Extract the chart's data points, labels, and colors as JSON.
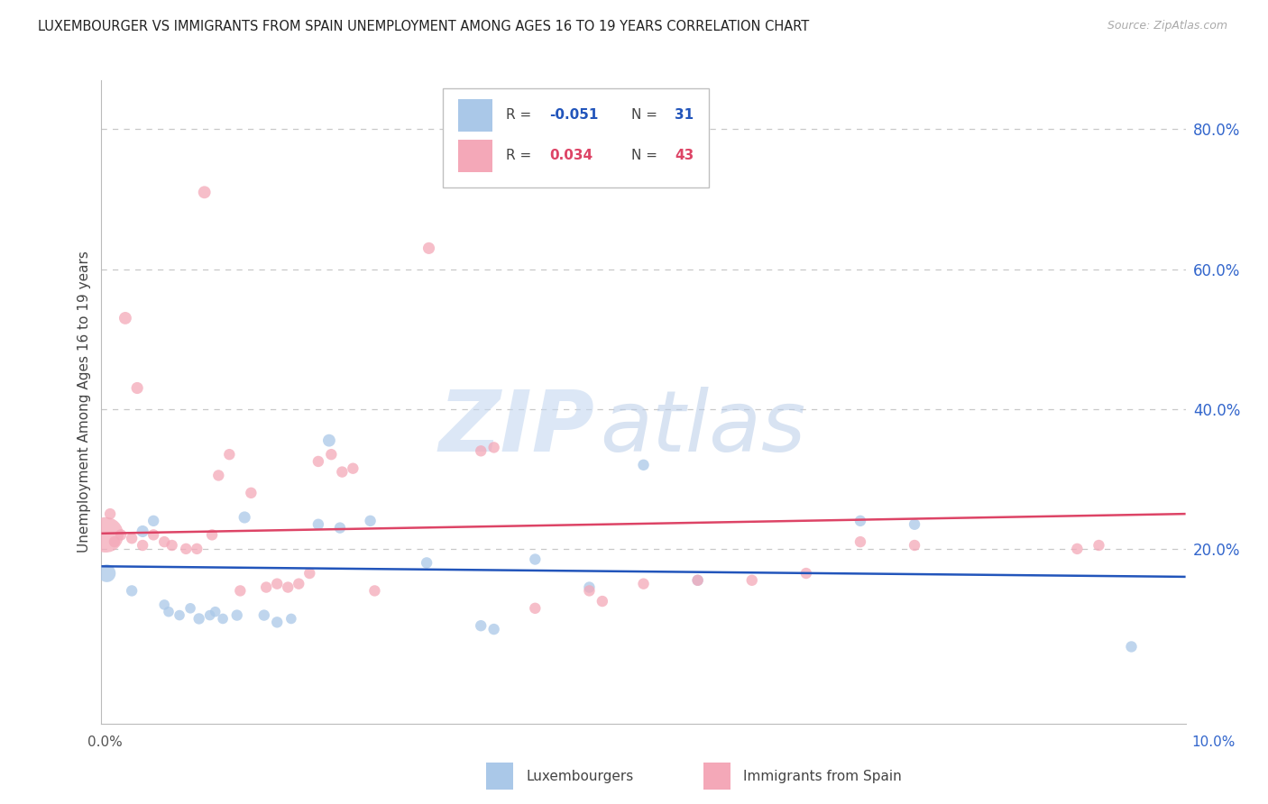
{
  "title": "LUXEMBOURGER VS IMMIGRANTS FROM SPAIN UNEMPLOYMENT AMONG AGES 16 TO 19 YEARS CORRELATION CHART",
  "source": "Source: ZipAtlas.com",
  "ylabel": "Unemployment Among Ages 16 to 19 years",
  "xlim": [
    0.0,
    10.0
  ],
  "ylim": [
    -5.0,
    87.0
  ],
  "right_yticks": [
    20.0,
    40.0,
    60.0,
    80.0
  ],
  "watermark_zip": "ZIP",
  "watermark_atlas": "atlas",
  "lux_color": "#aac8e8",
  "spain_color": "#f4a8b8",
  "lux_line_color": "#2255bb",
  "spain_line_color": "#dd4466",
  "lux_x": [
    0.05,
    0.28,
    0.38,
    0.48,
    0.58,
    0.62,
    0.72,
    0.82,
    0.9,
    1.0,
    1.05,
    1.12,
    1.25,
    1.32,
    1.5,
    1.62,
    1.75,
    2.0,
    2.1,
    2.2,
    2.48,
    3.0,
    3.5,
    3.62,
    4.0,
    4.5,
    5.0,
    5.5,
    7.0,
    7.5,
    9.5
  ],
  "lux_y": [
    16.5,
    14.0,
    22.5,
    24.0,
    12.0,
    11.0,
    10.5,
    11.5,
    10.0,
    10.5,
    11.0,
    10.0,
    10.5,
    24.5,
    10.5,
    9.5,
    10.0,
    23.5,
    35.5,
    23.0,
    24.0,
    18.0,
    9.0,
    8.5,
    18.5,
    14.5,
    32.0,
    15.5,
    24.0,
    23.5,
    6.0
  ],
  "lux_sz": [
    200,
    80,
    90,
    80,
    70,
    70,
    70,
    70,
    80,
    70,
    70,
    70,
    80,
    90,
    80,
    80,
    70,
    80,
    100,
    80,
    80,
    80,
    80,
    80,
    80,
    80,
    80,
    80,
    80,
    80,
    80
  ],
  "spain_x": [
    0.04,
    0.08,
    0.12,
    0.18,
    0.22,
    0.28,
    0.33,
    0.38,
    0.48,
    0.58,
    0.65,
    0.78,
    0.88,
    0.95,
    1.02,
    1.08,
    1.18,
    1.28,
    1.38,
    1.52,
    1.62,
    1.72,
    1.82,
    1.92,
    2.0,
    2.12,
    2.22,
    2.32,
    2.52,
    3.02,
    3.5,
    3.62,
    4.0,
    4.5,
    4.62,
    5.0,
    5.5,
    6.0,
    6.5,
    7.0,
    7.5,
    9.0,
    9.2
  ],
  "spain_y": [
    22.0,
    25.0,
    21.0,
    22.0,
    53.0,
    21.5,
    43.0,
    20.5,
    22.0,
    21.0,
    20.5,
    20.0,
    20.0,
    71.0,
    22.0,
    30.5,
    33.5,
    14.0,
    28.0,
    14.5,
    15.0,
    14.5,
    15.0,
    16.5,
    32.5,
    33.5,
    31.0,
    31.5,
    14.0,
    63.0,
    34.0,
    34.5,
    11.5,
    14.0,
    12.5,
    15.0,
    15.5,
    15.5,
    16.5,
    21.0,
    20.5,
    20.0,
    20.5
  ],
  "spain_sz": [
    800,
    80,
    80,
    80,
    100,
    80,
    90,
    80,
    80,
    80,
    80,
    80,
    80,
    100,
    80,
    80,
    80,
    80,
    80,
    80,
    80,
    80,
    80,
    80,
    80,
    80,
    80,
    80,
    80,
    90,
    80,
    80,
    80,
    80,
    80,
    80,
    80,
    80,
    80,
    80,
    80,
    80,
    80
  ],
  "lux_trend_x": [
    0.0,
    10.0
  ],
  "lux_trend_y": [
    17.5,
    16.0
  ],
  "spain_trend_x": [
    0.0,
    10.0
  ],
  "spain_trend_y": [
    22.2,
    25.0
  ],
  "grid_yticks": [
    20.0,
    40.0,
    60.0,
    80.0
  ]
}
